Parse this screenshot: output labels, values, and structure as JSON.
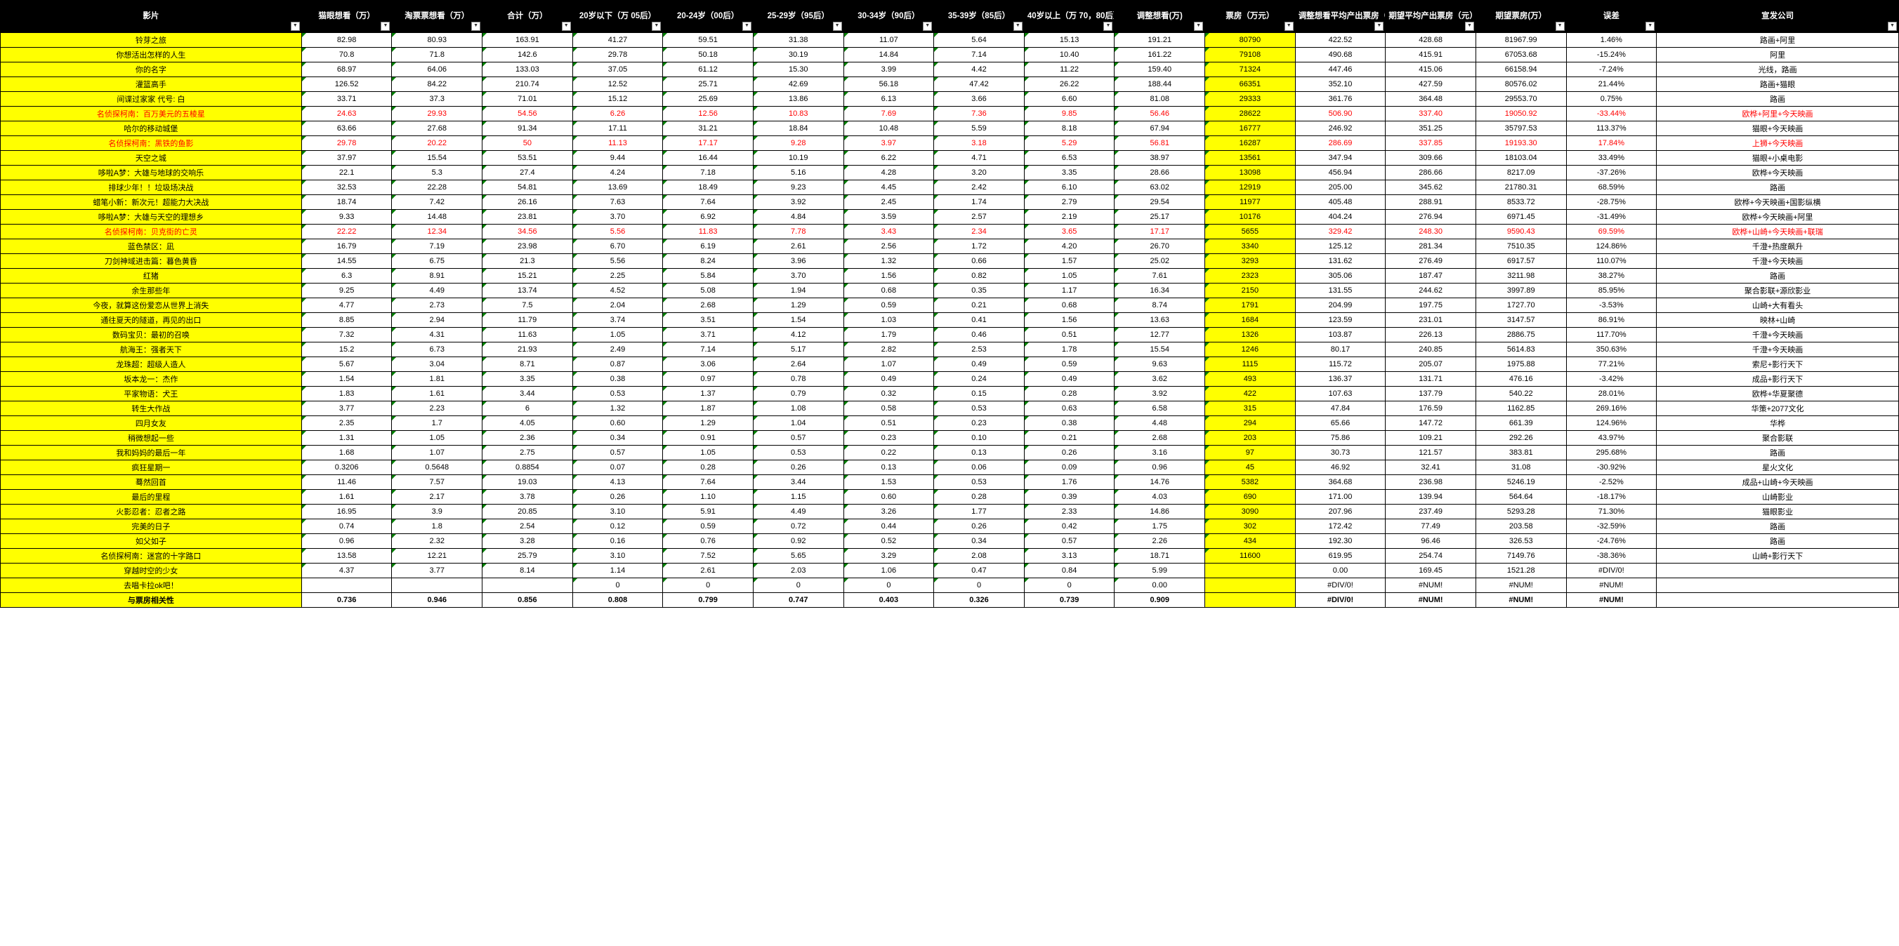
{
  "headers": [
    "影片",
    "猫眼想看（万）",
    "淘票票想看（万）",
    "合计（万）",
    "20岁以下（万 05后）",
    "20-24岁（00后）",
    "25-29岁（95后）",
    "30-34岁（90后）",
    "35-39岁（85后）",
    "40岁以上（万 70，80后）",
    "调整想看(万)",
    "票房（万元）",
    "调整想看平均产出票房（元）",
    "期望平均产出票房（元）",
    "期望票房(万）",
    "误差",
    "宣发公司"
  ],
  "rows": [
    {
      "movie": "铃芽之旅",
      "d": [
        "82.98",
        "80.93",
        "163.91",
        "41.27",
        "59.51",
        "31.38",
        "11.07",
        "5.64",
        "15.13",
        "191.21",
        "80790",
        "422.52",
        "428.68",
        "81967.99",
        "1.46%",
        "路画+阿里"
      ]
    },
    {
      "movie": "你想活出怎样的人生",
      "d": [
        "70.8",
        "71.8",
        "142.6",
        "29.78",
        "50.18",
        "30.19",
        "14.84",
        "7.14",
        "10.40",
        "161.22",
        "79108",
        "490.68",
        "415.91",
        "67053.68",
        "-15.24%",
        "阿里"
      ]
    },
    {
      "movie": "你的名字",
      "d": [
        "68.97",
        "64.06",
        "133.03",
        "37.05",
        "61.12",
        "15.30",
        "3.99",
        "4.42",
        "11.22",
        "159.40",
        "71324",
        "447.46",
        "415.06",
        "66158.94",
        "-7.24%",
        "光线，路画"
      ]
    },
    {
      "movie": "灌篮高手",
      "d": [
        "126.52",
        "84.22",
        "210.74",
        "12.52",
        "25.71",
        "42.69",
        "56.18",
        "47.42",
        "26.22",
        "188.44",
        "66351",
        "352.10",
        "427.59",
        "80576.02",
        "21.44%",
        "路画+猫眼"
      ]
    },
    {
      "movie": "间谍过家家 代号: 白",
      "d": [
        "33.71",
        "37.3",
        "71.01",
        "15.12",
        "25.69",
        "13.86",
        "6.13",
        "3.66",
        "6.60",
        "81.08",
        "29333",
        "361.76",
        "364.48",
        "29553.70",
        "0.75%",
        "路画"
      ]
    },
    {
      "movie": "名侦探柯南：百万美元的五棱星",
      "d": [
        "24.63",
        "29.93",
        "54.56",
        "6.26",
        "12.56",
        "10.83",
        "7.69",
        "7.36",
        "9.85",
        "56.46",
        "28622",
        "506.90",
        "337.40",
        "19050.92",
        "-33.44%",
        "欧桦+阿里+今天映画"
      ],
      "red": true
    },
    {
      "movie": "哈尔的移动城堡",
      "d": [
        "63.66",
        "27.68",
        "91.34",
        "17.11",
        "31.21",
        "18.84",
        "10.48",
        "5.59",
        "8.18",
        "67.94",
        "16777",
        "246.92",
        "351.25",
        "35797.53",
        "113.37%",
        "猫眼+今天映画"
      ]
    },
    {
      "movie": "名侦探柯南：黑铁的鱼影",
      "d": [
        "29.78",
        "20.22",
        "50",
        "11.13",
        "17.17",
        "9.28",
        "3.97",
        "3.18",
        "5.29",
        "56.81",
        "16287",
        "286.69",
        "337.85",
        "19193.30",
        "17.84%",
        "上狮+今天映画"
      ],
      "red": true
    },
    {
      "movie": "天空之城",
      "d": [
        "37.97",
        "15.54",
        "53.51",
        "9.44",
        "16.44",
        "10.19",
        "6.22",
        "4.71",
        "6.53",
        "38.97",
        "13561",
        "347.94",
        "309.66",
        "18103.04",
        "33.49%",
        "猫眼+小桌电影"
      ]
    },
    {
      "movie": "哆啦A梦：大雄与地球的交响乐",
      "d": [
        "22.1",
        "5.3",
        "27.4",
        "4.24",
        "7.18",
        "5.16",
        "4.28",
        "3.20",
        "3.35",
        "28.66",
        "13098",
        "456.94",
        "286.66",
        "8217.09",
        "-37.26%",
        "欧桦+今天映画"
      ]
    },
    {
      "movie": "排球少年！！垃圾场决战",
      "d": [
        "32.53",
        "22.28",
        "54.81",
        "13.69",
        "18.49",
        "9.23",
        "4.45",
        "2.42",
        "6.10",
        "63.02",
        "12919",
        "205.00",
        "345.62",
        "21780.31",
        "68.59%",
        "路画"
      ]
    },
    {
      "movie": "蜡笔小新：新次元！超能力大决战",
      "d": [
        "18.74",
        "7.42",
        "26.16",
        "7.63",
        "7.64",
        "3.92",
        "2.45",
        "1.74",
        "2.79",
        "29.54",
        "11977",
        "405.48",
        "288.91",
        "8533.72",
        "-28.75%",
        "欧桦+今天映画+国影纵横"
      ]
    },
    {
      "movie": "哆啦A梦：大雄与天空的理想乡",
      "d": [
        "9.33",
        "14.48",
        "23.81",
        "3.70",
        "6.92",
        "4.84",
        "3.59",
        "2.57",
        "2.19",
        "25.17",
        "10176",
        "404.24",
        "276.94",
        "6971.45",
        "-31.49%",
        "欧桦+今天映画+阿里"
      ]
    },
    {
      "movie": "名侦探柯南：贝克街的亡灵",
      "d": [
        "22.22",
        "12.34",
        "34.56",
        "5.56",
        "11.83",
        "7.78",
        "3.43",
        "2.34",
        "3.65",
        "17.17",
        "5655",
        "329.42",
        "248.30",
        "9590.43",
        "69.59%",
        "欧桦+山崎+今天映画+联瑞"
      ],
      "red": true
    },
    {
      "movie": "蓝色禁区：凪",
      "d": [
        "16.79",
        "7.19",
        "23.98",
        "6.70",
        "6.19",
        "2.61",
        "2.56",
        "1.72",
        "4.20",
        "26.70",
        "3340",
        "125.12",
        "281.34",
        "7510.35",
        "124.86%",
        "千澄+热度飙升"
      ]
    },
    {
      "movie": "刀剑神域进击篇：暮色黄昏",
      "d": [
        "14.55",
        "6.75",
        "21.3",
        "5.56",
        "8.24",
        "3.96",
        "1.32",
        "0.66",
        "1.57",
        "25.02",
        "3293",
        "131.62",
        "276.49",
        "6917.57",
        "110.07%",
        "千澄+今天映画"
      ]
    },
    {
      "movie": "红猪",
      "d": [
        "6.3",
        "8.91",
        "15.21",
        "2.25",
        "5.84",
        "3.70",
        "1.56",
        "0.82",
        "1.05",
        "7.61",
        "2323",
        "305.06",
        "187.47",
        "3211.98",
        "38.27%",
        "路画"
      ]
    },
    {
      "movie": "余生那些年",
      "d": [
        "9.25",
        "4.49",
        "13.74",
        "4.52",
        "5.08",
        "1.94",
        "0.68",
        "0.35",
        "1.17",
        "16.34",
        "2150",
        "131.55",
        "244.62",
        "3997.89",
        "85.95%",
        "聚合影联+源欣影业"
      ]
    },
    {
      "movie": "今夜，就算这份爱恋从世界上消失",
      "d": [
        "4.77",
        "2.73",
        "7.5",
        "2.04",
        "2.68",
        "1.29",
        "0.59",
        "0.21",
        "0.68",
        "8.74",
        "1791",
        "204.99",
        "197.75",
        "1727.70",
        "-3.53%",
        "山崎+大有看头"
      ]
    },
    {
      "movie": "通往夏天的隧道，再见的出口",
      "d": [
        "8.85",
        "2.94",
        "11.79",
        "3.74",
        "3.51",
        "1.54",
        "1.03",
        "0.41",
        "1.56",
        "13.63",
        "1684",
        "123.59",
        "231.01",
        "3147.57",
        "86.91%",
        "映林+山崎"
      ]
    },
    {
      "movie": "数码宝贝：最初的召唤",
      "d": [
        "7.32",
        "4.31",
        "11.63",
        "1.05",
        "3.71",
        "4.12",
        "1.79",
        "0.46",
        "0.51",
        "12.77",
        "1326",
        "103.87",
        "226.13",
        "2886.75",
        "117.70%",
        "千澄+今天映画"
      ]
    },
    {
      "movie": "航海王：强者天下",
      "d": [
        "15.2",
        "6.73",
        "21.93",
        "2.49",
        "7.14",
        "5.17",
        "2.82",
        "2.53",
        "1.78",
        "15.54",
        "1246",
        "80.17",
        "240.85",
        "5614.83",
        "350.63%",
        "千澄+今天映画"
      ]
    },
    {
      "movie": "龙珠超：超级人造人",
      "d": [
        "5.67",
        "3.04",
        "8.71",
        "0.87",
        "3.06",
        "2.64",
        "1.07",
        "0.49",
        "0.59",
        "9.63",
        "1115",
        "115.72",
        "205.07",
        "1975.88",
        "77.21%",
        "索尼+影行天下"
      ]
    },
    {
      "movie": "坂本龙一：杰作",
      "d": [
        "1.54",
        "1.81",
        "3.35",
        "0.38",
        "0.97",
        "0.78",
        "0.49",
        "0.24",
        "0.49",
        "3.62",
        "493",
        "136.37",
        "131.71",
        "476.16",
        "-3.42%",
        "成品+影行天下"
      ]
    },
    {
      "movie": "平家物语：犬王",
      "d": [
        "1.83",
        "1.61",
        "3.44",
        "0.53",
        "1.37",
        "0.79",
        "0.32",
        "0.15",
        "0.28",
        "3.92",
        "422",
        "107.63",
        "137.79",
        "540.22",
        "28.01%",
        "欧桦+华夏聚德"
      ]
    },
    {
      "movie": "转生大作战",
      "d": [
        "3.77",
        "2.23",
        "6",
        "1.32",
        "1.87",
        "1.08",
        "0.58",
        "0.53",
        "0.63",
        "6.58",
        "315",
        "47.84",
        "176.59",
        "1162.85",
        "269.16%",
        "华策+2077文化"
      ]
    },
    {
      "movie": "四月女友",
      "d": [
        "2.35",
        "1.7",
        "4.05",
        "0.60",
        "1.29",
        "1.04",
        "0.51",
        "0.23",
        "0.38",
        "4.48",
        "294",
        "65.66",
        "147.72",
        "661.39",
        "124.96%",
        "华桦"
      ]
    },
    {
      "movie": "稍微想起一些",
      "d": [
        "1.31",
        "1.05",
        "2.36",
        "0.34",
        "0.91",
        "0.57",
        "0.23",
        "0.10",
        "0.21",
        "2.68",
        "203",
        "75.86",
        "109.21",
        "292.26",
        "43.97%",
        "聚合影联"
      ]
    },
    {
      "movie": "我和妈妈的最后一年",
      "d": [
        "1.68",
        "1.07",
        "2.75",
        "0.57",
        "1.05",
        "0.53",
        "0.22",
        "0.13",
        "0.26",
        "3.16",
        "97",
        "30.73",
        "121.57",
        "383.81",
        "295.68%",
        "路画"
      ]
    },
    {
      "movie": "疯狂星期一",
      "d": [
        "0.3206",
        "0.5648",
        "0.8854",
        "0.07",
        "0.28",
        "0.26",
        "0.13",
        "0.06",
        "0.09",
        "0.96",
        "45",
        "46.92",
        "32.41",
        "31.08",
        "-30.92%",
        "星火文化"
      ]
    },
    {
      "movie": "蓦然回首",
      "d": [
        "11.46",
        "7.57",
        "19.03",
        "4.13",
        "7.64",
        "3.44",
        "1.53",
        "0.53",
        "1.76",
        "14.76",
        "5382",
        "364.68",
        "236.98",
        "5246.19",
        "-2.52%",
        "成品+山崎+今天映画"
      ]
    },
    {
      "movie": "最后的里程",
      "d": [
        "1.61",
        "2.17",
        "3.78",
        "0.26",
        "1.10",
        "1.15",
        "0.60",
        "0.28",
        "0.39",
        "4.03",
        "690",
        "171.00",
        "139.94",
        "564.64",
        "-18.17%",
        "山崎影业"
      ]
    },
    {
      "movie": "火影忍者：忍者之路",
      "d": [
        "16.95",
        "3.9",
        "20.85",
        "3.10",
        "5.91",
        "4.49",
        "3.26",
        "1.77",
        "2.33",
        "14.86",
        "3090",
        "207.96",
        "237.49",
        "5293.28",
        "71.30%",
        "猫眼影业"
      ]
    },
    {
      "movie": "完美的日子",
      "d": [
        "0.74",
        "1.8",
        "2.54",
        "0.12",
        "0.59",
        "0.72",
        "0.44",
        "0.26",
        "0.42",
        "1.75",
        "302",
        "172.42",
        "77.49",
        "203.58",
        "-32.59%",
        "路画"
      ]
    },
    {
      "movie": "如父如子",
      "d": [
        "0.96",
        "2.32",
        "3.28",
        "0.16",
        "0.76",
        "0.92",
        "0.52",
        "0.34",
        "0.57",
        "2.26",
        "434",
        "192.30",
        "96.46",
        "326.53",
        "-24.76%",
        "路画"
      ]
    },
    {
      "movie": "名侦探柯南：迷宫的十字路口",
      "d": [
        "13.58",
        "12.21",
        "25.79",
        "3.10",
        "7.52",
        "5.65",
        "3.29",
        "2.08",
        "3.13",
        "18.71",
        "11600",
        "619.95",
        "254.74",
        "7149.76",
        "-38.36%",
        "山崎+影行天下"
      ]
    },
    {
      "movie": "穿越时空的少女",
      "d": [
        "4.37",
        "3.77",
        "8.14",
        "1.14",
        "2.61",
        "2.03",
        "1.06",
        "0.47",
        "0.84",
        "5.99",
        "",
        "0.00",
        "169.45",
        "1521.28",
        "#DIV/0!",
        ""
      ]
    },
    {
      "movie": "去唱卡拉ok吧！",
      "d": [
        "",
        "",
        "",
        "0",
        "0",
        "0",
        "0",
        "0",
        "0",
        "0.00",
        "",
        "#DIV/0!",
        "#NUM!",
        "#NUM!",
        "#NUM!",
        ""
      ]
    },
    {
      "movie": "与票房相关性",
      "d": [
        "0.736",
        "0.946",
        "0.856",
        "0.808",
        "0.799",
        "0.747",
        "0.403",
        "0.326",
        "0.739",
        "0.909",
        "",
        "#DIV/0!",
        "#NUM!",
        "#NUM!",
        "#NUM!",
        ""
      ],
      "bold": true
    }
  ]
}
